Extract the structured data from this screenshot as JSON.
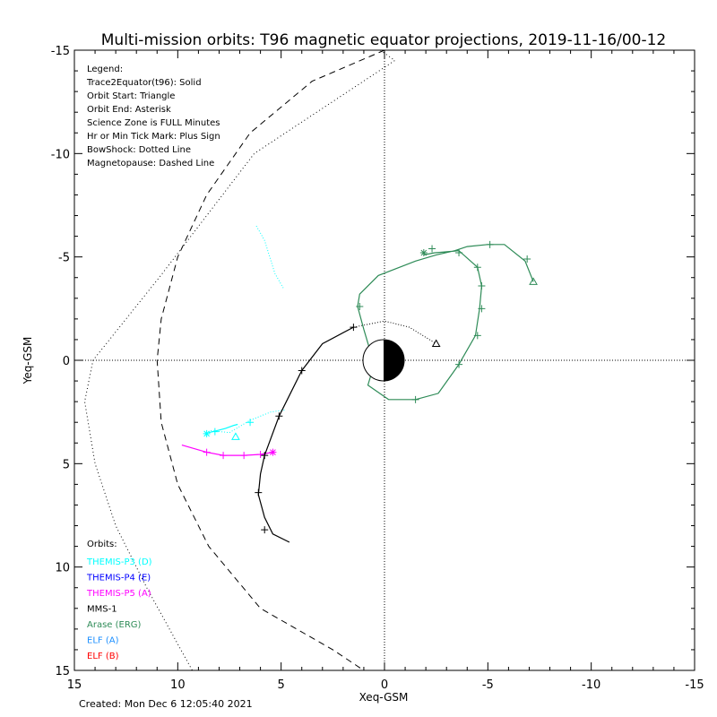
{
  "chart_data": {
    "type": "scatter",
    "title": "Multi-mission orbits: T96 magnetic equator projections, 2019-11-16/00-12",
    "xlabel": "Xeq-GSM",
    "ylabel": "Yeq-GSM",
    "xlim": [
      15,
      -15
    ],
    "ylim": [
      -15,
      15
    ],
    "x_ticks": [
      15,
      10,
      5,
      0,
      -5,
      -10,
      -15
    ],
    "y_ticks": [
      -15,
      -10,
      -5,
      0,
      5,
      10,
      15
    ],
    "x_tick_labels": [
      "15",
      "10",
      "5",
      "0",
      "-5",
      "-10",
      "-15"
    ],
    "y_tick_labels": [
      "-15",
      "-10",
      "-5",
      "0",
      "5",
      "10",
      "15"
    ],
    "created": "Created: Mon Dec  6 12:05:40 2021",
    "legend_lines": [
      "Legend:",
      "Trace2Equator(t96): Solid",
      "Orbit Start: Triangle",
      "Orbit End: Asterisk",
      "Science Zone is FULL Minutes",
      "Hr or Min Tick Mark: Plus Sign",
      "BowShock: Dotted Line",
      "Magnetopause: Dashed Line"
    ],
    "orbits_header": "Orbits:",
    "orbit_labels": [
      {
        "label": "THEMIS-P3 (D)",
        "color": "#00ffff"
      },
      {
        "label": "THEMIS-P4 (E)",
        "color": "#0000ff"
      },
      {
        "label": "THEMIS-P5 (A)",
        "color": "#ff00ff"
      },
      {
        "label": "MMS-1",
        "color": "#000000"
      },
      {
        "label": "Arase (ERG)",
        "color": "#2e8b57"
      },
      {
        "label": "ELF (A)",
        "color": "#1e90ff"
      },
      {
        "label": "ELF (B)",
        "color": "#ff0000"
      }
    ],
    "boundaries": {
      "bow_shock": [
        [
          9.5,
          -15
        ],
        [
          8,
          -13
        ],
        [
          6.5,
          -11
        ],
        [
          5,
          -9
        ],
        [
          4,
          -7
        ],
        [
          3.2,
          -5.5
        ],
        [
          2.5,
          -3.5
        ],
        [
          1.8,
          -2
        ],
        [
          0,
          1.9
        ]
      ],
      "bow_shock_outer": [
        [
          0.2,
          -15
        ],
        [
          -0.5,
          -14.5
        ],
        [
          6.3,
          -10
        ],
        [
          10.9,
          -4
        ],
        [
          14.1,
          0
        ],
        [
          14.5,
          2
        ],
        [
          14,
          5
        ],
        [
          13,
          8
        ],
        [
          11.5,
          11
        ],
        [
          9.3,
          15
        ]
      ],
      "magnetopause": [
        [
          0,
          -15
        ],
        [
          3.5,
          -13.5
        ],
        [
          6.5,
          -11
        ],
        [
          8.6,
          -8
        ],
        [
          10,
          -5
        ],
        [
          10.8,
          -2
        ],
        [
          11,
          0
        ],
        [
          10.8,
          3
        ],
        [
          10,
          6
        ],
        [
          8.5,
          9
        ],
        [
          6,
          12
        ],
        [
          2.5,
          14
        ],
        [
          1,
          15
        ]
      ]
    },
    "series": [
      {
        "name": "THEMIS-P3 (D)",
        "color": "#00ffff",
        "solid": [
          [
            8.5,
            3.5
          ],
          [
            8.1,
            3.4
          ],
          [
            7.7,
            3.3
          ],
          [
            7.3,
            3.15
          ],
          [
            7.1,
            3.1
          ]
        ],
        "dotted": [
          [
            8.4,
            3.4
          ],
          [
            7.5,
            3.5
          ],
          [
            6.5,
            2.9
          ],
          [
            5.5,
            2.5
          ],
          [
            4.8,
            2.4
          ]
        ],
        "dotted2": [
          [
            6.2,
            -6.5
          ],
          [
            5.8,
            -5.8
          ],
          [
            5.3,
            -4.2
          ],
          [
            4.9,
            -3.5
          ]
        ],
        "ticks": [
          [
            8.2,
            3.45
          ],
          [
            6.5,
            3.0
          ]
        ],
        "start": [
          7.2,
          3.7
        ],
        "end": [
          8.6,
          3.55
        ]
      },
      {
        "name": "THEMIS-P5 (A)",
        "color": "#ff00ff",
        "solid": [
          [
            9.8,
            4.1
          ],
          [
            8.6,
            4.45
          ],
          [
            7.8,
            4.6
          ],
          [
            6.8,
            4.6
          ],
          [
            6.0,
            4.55
          ],
          [
            5.4,
            4.45
          ]
        ],
        "ticks": [
          [
            8.6,
            4.45
          ],
          [
            7.8,
            4.6
          ],
          [
            6.8,
            4.6
          ],
          [
            6.0,
            4.55
          ]
        ],
        "end": [
          5.4,
          4.45
        ]
      },
      {
        "name": "MMS-1",
        "color": "#000000",
        "solid": [
          [
            4.6,
            8.8
          ],
          [
            5.4,
            8.4
          ],
          [
            5.8,
            7.6
          ],
          [
            6.1,
            6.5
          ],
          [
            6.0,
            5.5
          ],
          [
            5.8,
            4.6
          ],
          [
            5.1,
            2.7
          ],
          [
            4.0,
            0.5
          ],
          [
            3.0,
            -0.8
          ],
          [
            1.5,
            -1.6
          ]
        ],
        "dotted": [
          [
            1.5,
            -1.6
          ],
          [
            0,
            -1.9
          ],
          [
            -1.2,
            -1.6
          ],
          [
            -2.5,
            -0.8
          ]
        ],
        "ticks": [
          [
            5.8,
            8.2
          ],
          [
            6.1,
            6.4
          ],
          [
            5.8,
            4.6
          ],
          [
            5.1,
            2.7
          ],
          [
            4.0,
            0.5
          ],
          [
            1.5,
            -1.6
          ]
        ],
        "start": [
          -2.5,
          -0.8
        ]
      },
      {
        "name": "Arase (ERG)",
        "color": "#2e8b57",
        "solid": [
          [
            -7.2,
            -3.8
          ],
          [
            -6.8,
            -4.8
          ],
          [
            -5.8,
            -5.6
          ],
          [
            -5.0,
            -5.6
          ],
          [
            -4.0,
            -5.5
          ],
          [
            -3.4,
            -5.3
          ],
          [
            -2.5,
            -5.1
          ],
          [
            -1.5,
            -4.8
          ],
          [
            0.3,
            -4.1
          ],
          [
            1.2,
            -3.2
          ],
          [
            1.3,
            -2.6
          ],
          [
            1.0,
            -1.5
          ],
          [
            0.5,
            0.2
          ],
          [
            0.8,
            1.2
          ],
          [
            -0.2,
            1.9
          ],
          [
            -1.5,
            1.9
          ],
          [
            -2.6,
            1.6
          ],
          [
            -3.6,
            0.2
          ],
          [
            -4.4,
            -1.2
          ],
          [
            -4.6,
            -2.5
          ],
          [
            -4.7,
            -3.6
          ],
          [
            -4.5,
            -4.5
          ],
          [
            -3.6,
            -5.3
          ],
          [
            -2.4,
            -5.2
          ],
          [
            -1.9,
            -5.1
          ]
        ],
        "ticks": [
          [
            -6.9,
            -4.9
          ],
          [
            -5.1,
            -5.6
          ],
          [
            -3.6,
            -5.2
          ],
          [
            -2.3,
            -5.4
          ],
          [
            -4.5,
            -4.5
          ],
          [
            -4.7,
            -3.6
          ],
          [
            -4.7,
            -2.5
          ],
          [
            -4.5,
            -1.2
          ],
          [
            -3.6,
            0.2
          ],
          [
            -1.5,
            1.9
          ],
          [
            1.2,
            -2.6
          ]
        ],
        "start": [
          -7.2,
          -3.8
        ],
        "end": [
          -1.9,
          -5.2
        ]
      }
    ]
  }
}
